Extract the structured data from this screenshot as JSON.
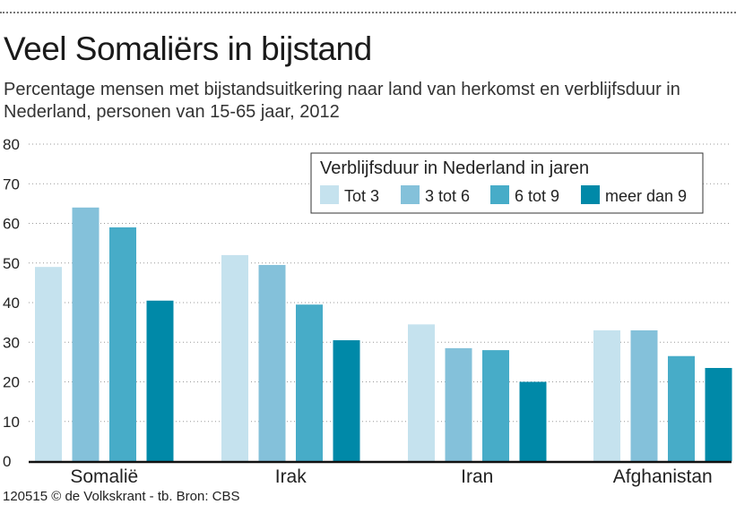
{
  "title": "Veel Somaliërs in bijstand",
  "subtitle": "Percentage mensen met bijstandsuitkering naar land van herkomst en verblijfsduur in Nederland, personen van 15-65 jaar, 2012",
  "footer": "120515 © de Volkskrant - tb. Bron: CBS",
  "chart_data": {
    "type": "bar",
    "categories": [
      "Somalië",
      "Irak",
      "Iran",
      "Afghanistan"
    ],
    "legend_title": "Verblijfsduur in Nederland in jaren",
    "legend_position": "top-right",
    "series": [
      {
        "name": "Tot 3",
        "color": "#c5e2ee",
        "values": [
          49,
          52,
          34.5,
          33
        ]
      },
      {
        "name": "3 tot 6",
        "color": "#84c1da",
        "values": [
          64,
          49.5,
          28.5,
          33
        ]
      },
      {
        "name": "6 tot 9",
        "color": "#47acc8",
        "values": [
          59,
          39.5,
          28,
          26.5
        ]
      },
      {
        "name": "meer dan 9",
        "color": "#0089a8",
        "values": [
          40.5,
          30.5,
          20,
          23.5
        ]
      }
    ],
    "ylim": [
      0,
      80
    ],
    "yticks": [
      0,
      10,
      20,
      30,
      40,
      50,
      60,
      70,
      80
    ],
    "grid": true
  }
}
